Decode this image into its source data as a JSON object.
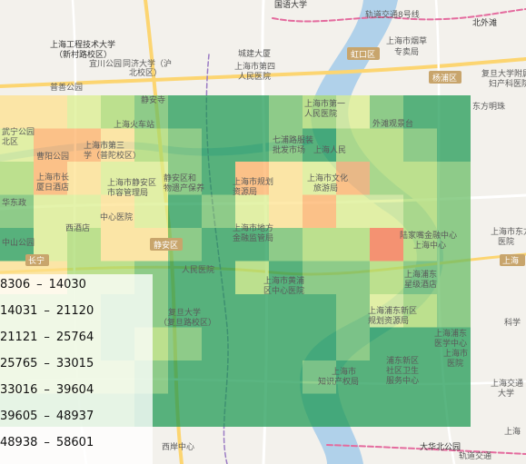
{
  "map": {
    "place_labels": {
      "tongji_top": "国语大学",
      "metro8": "轨道交通8号线",
      "beiwaitan": "北外滩",
      "engineering_univ": "上海工程技术大学",
      "engineering_univ_campus": "（新村路校区）",
      "yichuan_park": "宜川公园",
      "tongji_univ": "同济大学（沪",
      "tongji_campus": "北校区）",
      "longde_park": "普善公园",
      "chengjian": "城建大厦",
      "hongkou_hospital": "上海市第四",
      "hongkou_hospital2": "人民医院",
      "hongkou_district": "虹口区",
      "tobacco": "上海市烟草",
      "tobacco2": "专卖局",
      "yangpu_district": "杨浦区",
      "fudan_hospital": "复旦大学附属",
      "fudan_hospital2": "妇产科医院",
      "jingan_temple": "静安寺",
      "railway_station": "上海火车站",
      "first_hospital": "上海市第一",
      "first_hospital2": "人民医院",
      "waitan": "外滩观景台",
      "oriental_pearl": "东方明珠",
      "daning": "武宁公园",
      "putuo": "北区",
      "caoyang": "曹阳公园",
      "ninth_hospital": "上海市第三",
      "ninth_hospital2": "学（普陀校区）",
      "jinjiang": "上海市长",
      "jinjiang2": "厦日酒店",
      "jingan_bureau": "上海市静安区",
      "jingan_bureau2": "市容管理局",
      "jingan_park": "静安区和",
      "jingan_park2": "物遗产保养",
      "square": "七浦路服装",
      "square2": "批发市场",
      "people_square": "上海人民",
      "culture_bureau": "上海市文化",
      "culture_bureau2": "旅游局",
      "planning": "上海市规划",
      "planning2": "资源局",
      "zhongshan_park": "中山公园",
      "center_hospital": "中心医院",
      "hotel": "西酒店",
      "huashan": "华东政",
      "dist_a": "上海市地方",
      "dist_b": "金融监管局",
      "jingan_badge": "静安区",
      "lujiazui": "陆家嘴金融中心",
      "lujiazui2": "上海中心",
      "mart_badge": "上海",
      "changning_badge": "长宁",
      "dongfang_hospital": "上海市东方",
      "dongfang2": "医院",
      "pudong": "上海浦东",
      "pudong2": "星级酒店",
      "pudong_new": "上海浦东新区",
      "pudong_new2": "规划资源局",
      "people_hosp": "人民医院",
      "fudan_yxy": "复旦大学",
      "fudan_yxy2": "（复旦路校区）",
      "huangpu": "上海市黄浦",
      "huangpu2": "区中心医院",
      "huangpu_court": "上海市",
      "huangpu_court2": "知识产权局",
      "jiaotong": "上海交通",
      "jiaotong2": "大学",
      "expo": "浦东新区",
      "expo2": "社区卫生",
      "expo3": "服务中心",
      "xuhui": "西岸中心",
      "dahua": "大华北公园",
      "metro_bottom": "轨道交通",
      "longhua": "上海市",
      "longhua2": "医院",
      "sanlin": "上海浦东",
      "sanlin2": "医学中心",
      "kangqiao": "科学",
      "right_edge": "上海"
    }
  },
  "legend": {
    "ranges": [
      {
        "lo": "8306",
        "hi": "14030",
        "color": "#1a9850"
      },
      {
        "lo": "14031",
        "hi": "21120",
        "color": "#66bd63"
      },
      {
        "lo": "21121",
        "hi": "25764",
        "color": "#a6d96a"
      },
      {
        "lo": "25765",
        "hi": "33015",
        "color": "#d9ef8b"
      },
      {
        "lo": "33016",
        "hi": "39604",
        "color": "#fee08b"
      },
      {
        "lo": "39605",
        "hi": "48937",
        "color": "#fdae61"
      },
      {
        "lo": "48938",
        "hi": "58601",
        "color": "#f46d43"
      }
    ],
    "separator": "–"
  },
  "heatmap": {
    "columns": 14,
    "rows": 10,
    "cells": [
      [
        5,
        5,
        4,
        3,
        2,
        1,
        1,
        1,
        2,
        3,
        4,
        2,
        1,
        1
      ],
      [
        4,
        6,
        6,
        5,
        3,
        2,
        1,
        1,
        2,
        1,
        3,
        3,
        2,
        1
      ],
      [
        3,
        6,
        5,
        4,
        4,
        2,
        1,
        6,
        5,
        4,
        6,
        3,
        3,
        2
      ],
      [
        2,
        4,
        4,
        5,
        4,
        1,
        2,
        4,
        5,
        6,
        4,
        4,
        3,
        2
      ],
      [
        1,
        4,
        3,
        5,
        5,
        2,
        1,
        1,
        2,
        3,
        3,
        7,
        3,
        2
      ],
      [
        5,
        5,
        3,
        3,
        2,
        1,
        1,
        3,
        1,
        2,
        2,
        3,
        2,
        2
      ],
      [
        3,
        3,
        3,
        2,
        2,
        1,
        0,
        1,
        0,
        0,
        2,
        4,
        3,
        2
      ],
      [
        3,
        3,
        3,
        2,
        3,
        2,
        1,
        1,
        1,
        1,
        2,
        1,
        1,
        1
      ],
      [
        3,
        3,
        3,
        3,
        2,
        1,
        1,
        1,
        1,
        2,
        1,
        1,
        1,
        1
      ],
      [
        2,
        2,
        2,
        2,
        1,
        1,
        1,
        1,
        0,
        1,
        1,
        1,
        1,
        1
      ]
    ]
  }
}
